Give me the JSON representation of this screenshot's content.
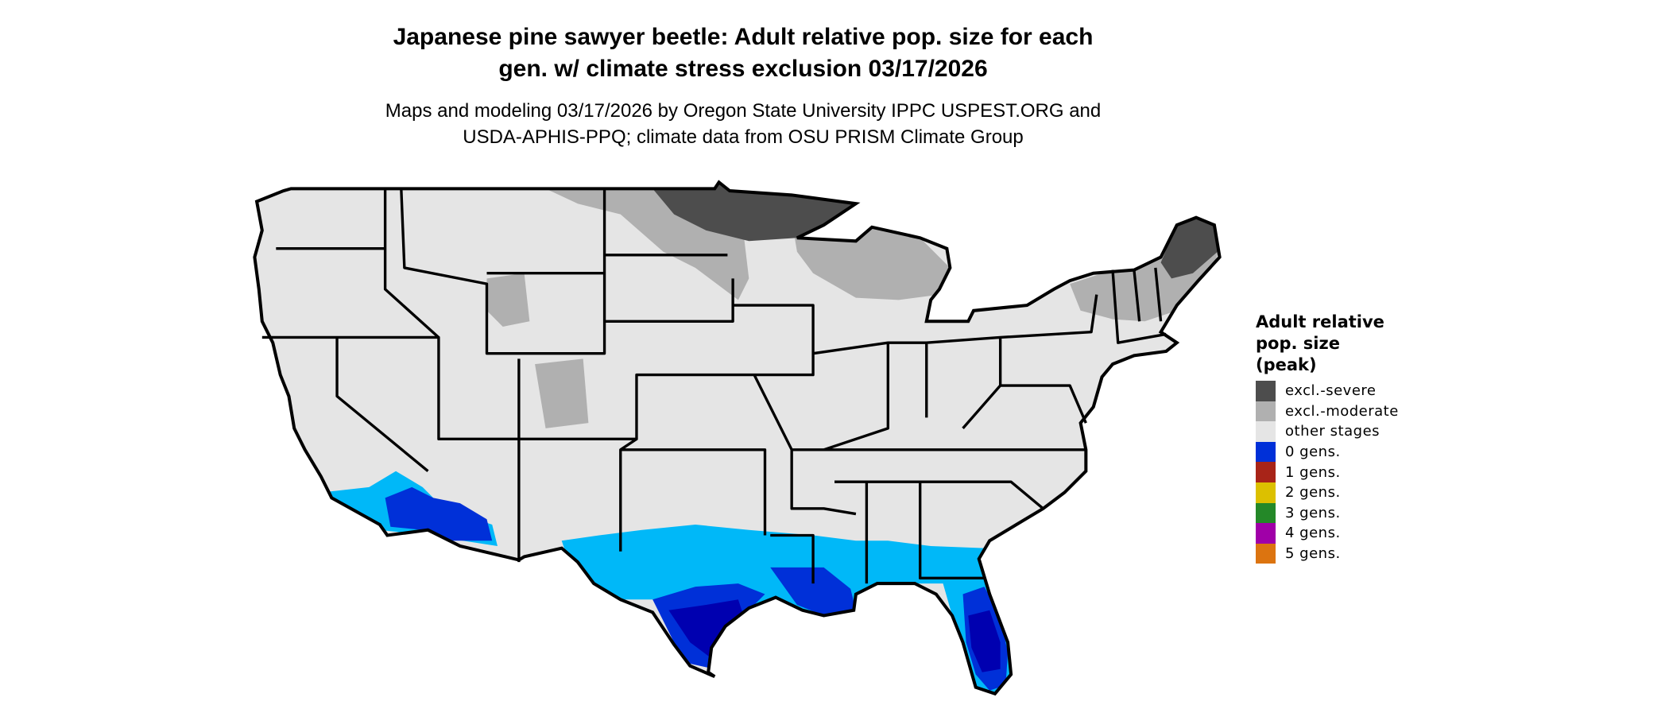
{
  "title": {
    "line1": "Japanese pine sawyer beetle: Adult relative pop. size for each",
    "line2": "gen. w/ climate stress exclusion 03/17/2026"
  },
  "subtitle": {
    "line1": "Maps and modeling 03/17/2026 by Oregon State University IPPC USPEST.ORG and",
    "line2": "USDA-APHIS-PPQ; climate data from OSU PRISM Climate Group"
  },
  "legend": {
    "title_lines": [
      "Adult relative",
      "pop. size",
      "(peak)"
    ],
    "items": [
      {
        "label": "excl.-severe",
        "color": "#4d4d4d"
      },
      {
        "label": "excl.-moderate",
        "color": "#b0b0b0"
      },
      {
        "label": "other stages",
        "color": "#e5e5e5"
      },
      {
        "label": "0 gens.",
        "color": "#0030d8"
      },
      {
        "label": "1 gens.",
        "color": "#a82418"
      },
      {
        "label": "2 gens.",
        "color": "#dcc000"
      },
      {
        "label": "3 gens.",
        "color": "#248828"
      },
      {
        "label": "4 gens.",
        "color": "#a000a8"
      },
      {
        "label": "5 gens.",
        "color": "#dc7410"
      }
    ]
  },
  "map": {
    "region": "Contiguous United States",
    "colors": {
      "base": "#e5e5e5",
      "excl_severe": "#4d4d4d",
      "excl_moderate": "#b0b0b0",
      "light_blue": "#00b8f8",
      "blue": "#0030d8",
      "dark_blue": "#0000b0",
      "border": "#000000"
    }
  }
}
